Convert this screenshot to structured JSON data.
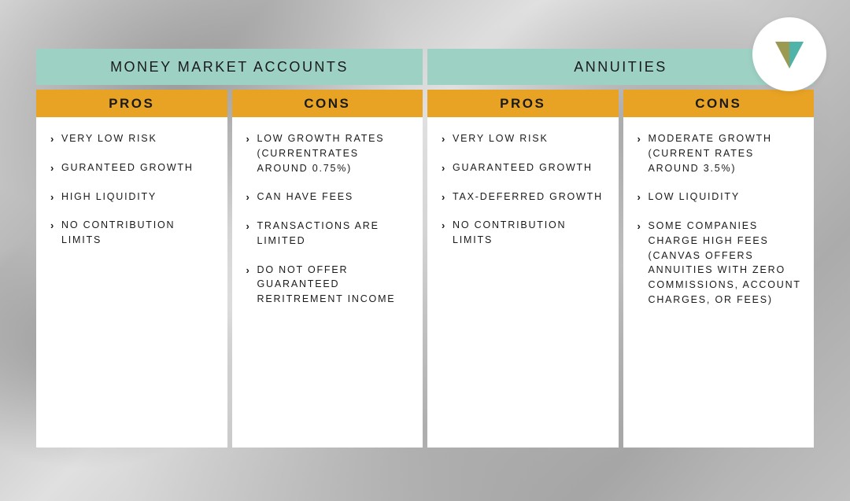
{
  "colors": {
    "category_bg": "#9dd1c4",
    "subheader_bg": "#e8a325",
    "content_bg": "#ffffff",
    "text": "#1a1a1a",
    "logo_olive": "#9a9a52",
    "logo_teal": "#4fb3a9"
  },
  "categories": [
    {
      "title": "Money Market Accounts"
    },
    {
      "title": "Annuities"
    }
  ],
  "subheaders": [
    "Pros",
    "Cons",
    "Pros",
    "Cons"
  ],
  "columns": [
    {
      "items": [
        {
          "main": "Very Low Risk"
        },
        {
          "main": "Guranteed Growth"
        },
        {
          "main": "High Liquidity"
        },
        {
          "main": "No Contribution Limits"
        }
      ]
    },
    {
      "items": [
        {
          "main": "Low Growth Rates",
          "sub": "(Currentrates around 0.75%)"
        },
        {
          "main": "Can Have Fees"
        },
        {
          "main": "Transactions are Limited"
        },
        {
          "main": "Do Not Offer Guaranteed Reritrement income"
        }
      ]
    },
    {
      "items": [
        {
          "main": "Very Low Risk"
        },
        {
          "main": "Guaranteed Growth"
        },
        {
          "main": "Tax-Deferred Growth"
        },
        {
          "main": "No Contribution limits"
        }
      ]
    },
    {
      "items": [
        {
          "main": "Moderate Growth",
          "sub": "(Current rates around 3.5%)"
        },
        {
          "main": "Low Liquidity"
        },
        {
          "main": "Some companies charge high fees",
          "sub": "(Canvas offers annuities with zero commissions, account charges, or fees)"
        }
      ]
    }
  ]
}
